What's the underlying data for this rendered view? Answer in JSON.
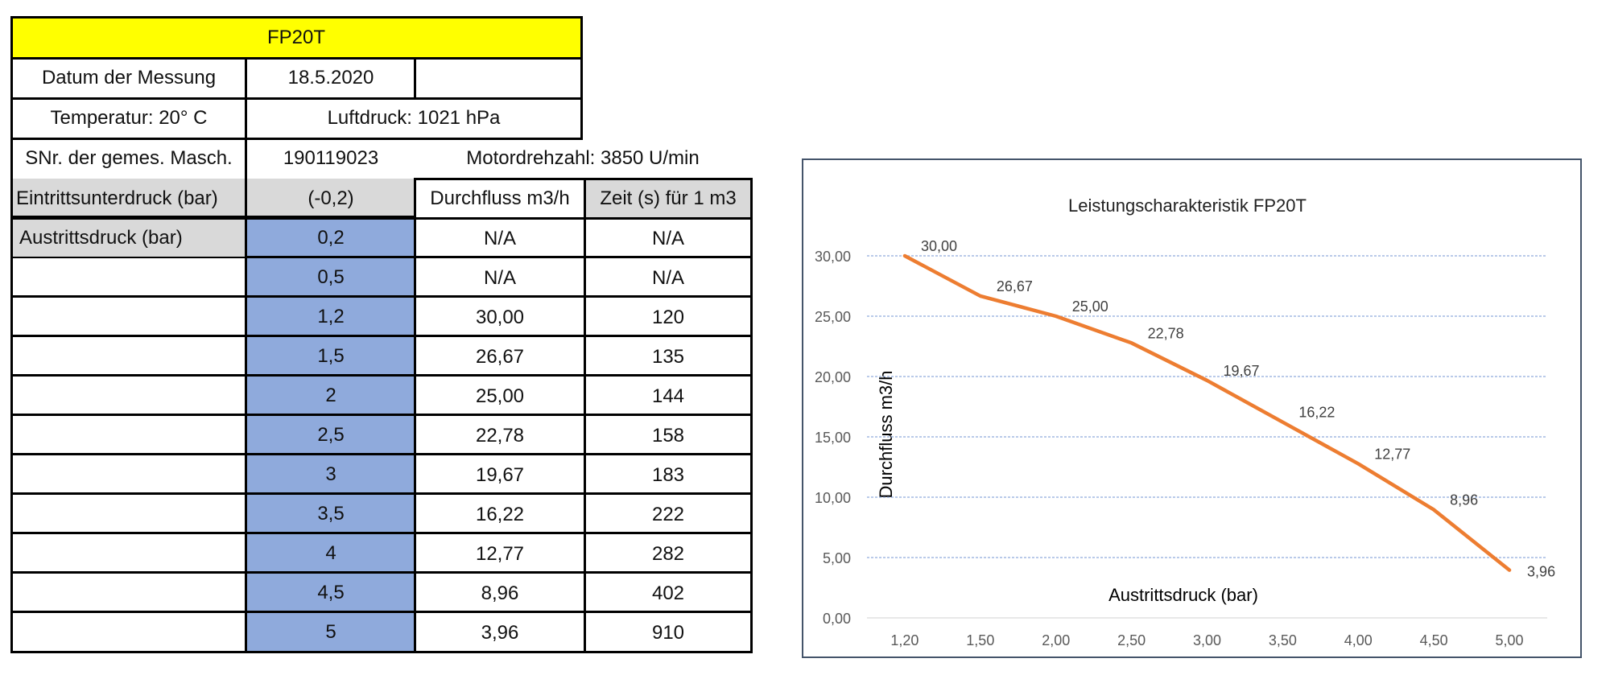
{
  "table": {
    "title": "FP20T",
    "date_label": "Datum der Messung",
    "date_value": "18.5.2020",
    "temperature": "Temperatur: 20° C",
    "air_pressure": "Luftdruck: 1021 hPa",
    "serial_label": "SNr. der gemes. Masch.",
    "serial_value": "190119023",
    "motor_speed": "Motordrehzahl: 3850 U/min",
    "inlet_label": "Eintrittsunterdruck (bar)",
    "inlet_value": "(-0,2)",
    "flow_header": "Durchfluss m3/h",
    "time_header": "Zeit (s) für 1 m3",
    "outlet_label": "Austrittsdruck (bar)",
    "rows": [
      {
        "pressure": "0,2",
        "flow": "N/A",
        "time": "N/A"
      },
      {
        "pressure": "0,5",
        "flow": "N/A",
        "time": "N/A"
      },
      {
        "pressure": "1,2",
        "flow": "30,00",
        "time": "120"
      },
      {
        "pressure": "1,5",
        "flow": "26,67",
        "time": "135"
      },
      {
        "pressure": "2",
        "flow": "25,00",
        "time": "144"
      },
      {
        "pressure": "2,5",
        "flow": "22,78",
        "time": "158"
      },
      {
        "pressure": "3",
        "flow": "19,67",
        "time": "183"
      },
      {
        "pressure": "3,5",
        "flow": "16,22",
        "time": "222"
      },
      {
        "pressure": "4",
        "flow": "12,77",
        "time": "282"
      },
      {
        "pressure": "4,5",
        "flow": "8,96",
        "time": "402"
      },
      {
        "pressure": "5",
        "flow": "3,96",
        "time": "910"
      }
    ]
  },
  "chart_data": {
    "type": "line",
    "title": "Leistungscharakteristik FP20T",
    "xlabel": "Austrittsdruck (bar)",
    "ylabel": "Durchfluss m3/h",
    "categories": [
      "1,20",
      "1,50",
      "2,00",
      "2,50",
      "3,00",
      "3,50",
      "4,00",
      "4,50",
      "5,00"
    ],
    "values": [
      30.0,
      26.67,
      25.0,
      22.78,
      19.67,
      16.22,
      12.77,
      8.96,
      3.96
    ],
    "value_labels": [
      "30,00",
      "26,67",
      "25,00",
      "22,78",
      "19,67",
      "16,22",
      "12,77",
      "8,96",
      "3,96"
    ],
    "ylim": [
      0,
      30
    ],
    "yticks": [
      "0,00",
      "5,00",
      "10,00",
      "15,00",
      "20,00",
      "25,00",
      "30,00"
    ],
    "ytick_values": [
      0,
      5,
      10,
      15,
      20,
      25,
      30
    ],
    "grid": true,
    "legend": "none",
    "line_color": "#ed7d31",
    "grid_color": "#8faadc"
  }
}
